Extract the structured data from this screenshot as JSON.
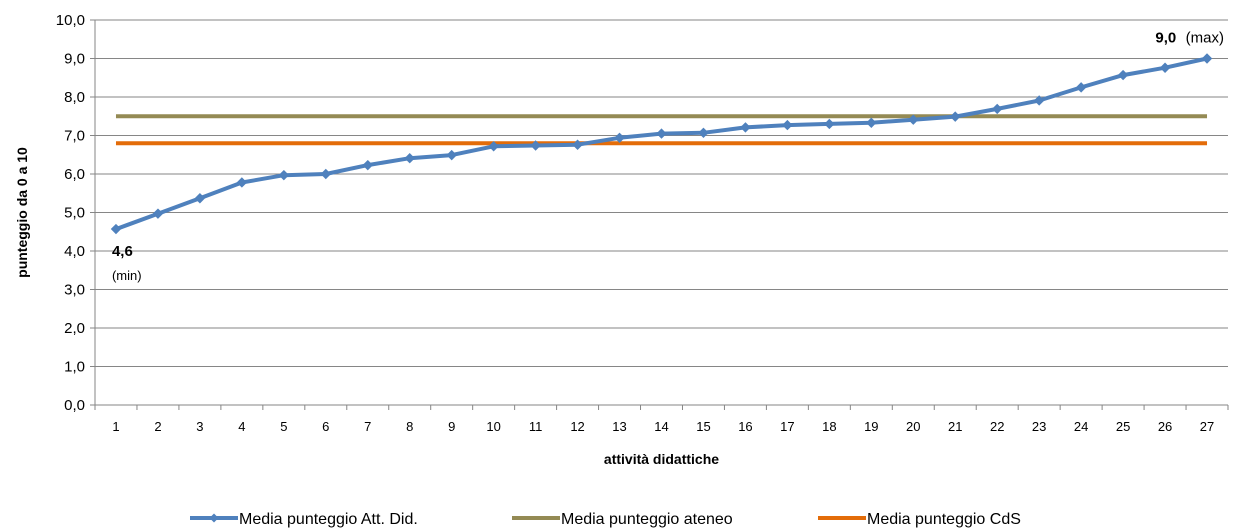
{
  "chart_data": {
    "type": "line",
    "xlabel": "attività didattiche",
    "ylabel": "punteggio da 0 a 10",
    "ylim": [
      0,
      10
    ],
    "y_ticks": [
      "0,0",
      "1,0",
      "2,0",
      "3,0",
      "4,0",
      "5,0",
      "6,0",
      "7,0",
      "8,0",
      "9,0",
      "10,0"
    ],
    "categories": [
      "1",
      "2",
      "3",
      "4",
      "5",
      "6",
      "7",
      "8",
      "9",
      "10",
      "11",
      "12",
      "13",
      "14",
      "15",
      "16",
      "17",
      "18",
      "19",
      "20",
      "21",
      "22",
      "23",
      "24",
      "25",
      "26",
      "27"
    ],
    "series": [
      {
        "name": "Media punteggio Att. Did.",
        "color": "#4F81BD",
        "marker": "diamond",
        "values": [
          4.57,
          4.97,
          5.37,
          5.78,
          5.97,
          6.0,
          6.23,
          6.41,
          6.49,
          6.72,
          6.74,
          6.76,
          6.94,
          7.05,
          7.07,
          7.21,
          7.27,
          7.3,
          7.33,
          7.41,
          7.49,
          7.69,
          7.91,
          8.25,
          8.57,
          8.76,
          9.0
        ]
      },
      {
        "name": "Media punteggio ateneo",
        "color": "#948A54",
        "constant": 7.5
      },
      {
        "name": "Media punteggio CdS",
        "color": "#E36C09",
        "constant": 6.8
      }
    ],
    "annotations": {
      "min": {
        "value": "4,6",
        "note": "(min)"
      },
      "max": {
        "value": "9,0",
        "note": "(max)"
      }
    },
    "legend_position": "bottom",
    "grid": "horizontal"
  }
}
